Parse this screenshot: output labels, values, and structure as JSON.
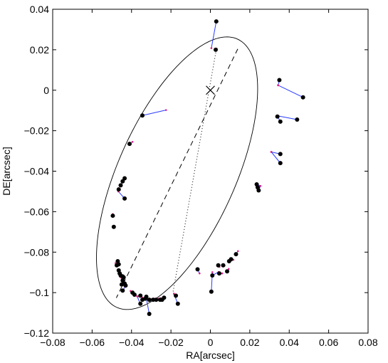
{
  "chart_data": {
    "type": "scatter",
    "title": "",
    "xlabel": "RA[arcsec]",
    "ylabel": "DE[arcsec]",
    "xlim": [
      -0.08,
      0.08
    ],
    "ylim": [
      -0.12,
      0.04
    ],
    "xticks": [
      -0.08,
      -0.06,
      -0.04,
      -0.02,
      0,
      0.02,
      0.04,
      0.06,
      0.08
    ],
    "xtick_labels": [
      "−0.08",
      "−0.06",
      "−0.04",
      "−0.02",
      "0",
      "0.02",
      "0.04",
      "0.06",
      "0.08"
    ],
    "yticks": [
      0.04,
      0.02,
      0,
      -0.02,
      -0.04,
      -0.06,
      -0.08,
      -0.1,
      -0.12
    ],
    "ytick_labels": [
      "0.04",
      "0.02",
      "0",
      "−0.02",
      "−0.04",
      "−0.06",
      "−0.08",
      "−0.1",
      "−0.12"
    ],
    "grid": false,
    "legend": "none",
    "orbit_ellipse": {
      "center": [
        -0.0169,
        -0.041
      ],
      "semi_major": 0.073,
      "semi_minor": 0.0296,
      "major_axis_angle_deg": 65
    },
    "focus_marker": [
      0,
      0
    ],
    "semi_major_axis_line": [
      [
        0.0139,
        0.0204
      ],
      [
        -0.0477,
        -0.1026
      ]
    ],
    "apsidal_line": [
      [
        0.0139,
        0.0204
      ],
      [
        -0.0477,
        -0.1026
      ]
    ],
    "line_of_nodes": [
      [
        0.003,
        0.02
      ],
      [
        -0.019,
        -0.1
      ]
    ],
    "observations": [
      {
        "obs": [
          0.003,
          0.034
        ],
        "fit": [
          0.0005,
          0.0208
        ]
      },
      {
        "obs": [
          0.0027,
          0.02
        ],
        "fit": [
          0.0032,
          0.0205
        ]
      },
      {
        "obs": [
          0.035,
          0.005
        ],
        "fit": [
          0.0344,
          0.0024
        ]
      },
      {
        "obs": [
          0.047,
          -0.0035
        ],
        "fit": [
          0.0343,
          0.0025
        ]
      },
      {
        "obs": [
          -0.0345,
          -0.0125
        ],
        "fit": [
          -0.0225,
          -0.0098
        ]
      },
      {
        "obs": [
          0.034,
          -0.013
        ],
        "fit": [
          0.0339,
          -0.0126
        ]
      },
      {
        "obs": [
          0.044,
          -0.0145
        ],
        "fit": [
          0.0339,
          -0.0126
        ]
      },
      {
        "obs": [
          0.0355,
          -0.0155
        ],
        "fit": [
          0.034,
          -0.0128
        ]
      },
      {
        "obs": [
          -0.041,
          -0.0265
        ],
        "fit": [
          -0.0395,
          -0.0255
        ]
      },
      {
        "obs": [
          0.0355,
          -0.0315
        ],
        "fit": [
          0.0309,
          -0.0305
        ]
      },
      {
        "obs": [
          0.0355,
          -0.036
        ],
        "fit": [
          0.0309,
          -0.0305
        ]
      },
      {
        "obs": [
          -0.0435,
          -0.0435
        ],
        "fit": [
          -0.0454,
          -0.0469
        ]
      },
      {
        "obs": [
          -0.0445,
          -0.045
        ],
        "fit": [
          -0.0454,
          -0.0469
        ]
      },
      {
        "obs": [
          -0.0455,
          -0.047
        ],
        "fit": [
          -0.0456,
          -0.0472
        ]
      },
      {
        "obs": [
          0.0235,
          -0.0465
        ],
        "fit": [
          0.0254,
          -0.0473
        ]
      },
      {
        "obs": [
          0.024,
          -0.048
        ],
        "fit": [
          0.0254,
          -0.0473
        ]
      },
      {
        "obs": [
          0.0245,
          -0.0495
        ],
        "fit": [
          0.0254,
          -0.0473
        ]
      },
      {
        "obs": [
          -0.0465,
          -0.049
        ],
        "fit": [
          -0.0466,
          -0.0484
        ]
      },
      {
        "obs": [
          -0.0435,
          -0.0535
        ],
        "fit": [
          -0.0467,
          -0.05
        ]
      },
      {
        "obs": [
          -0.0495,
          -0.062
        ],
        "fit": [
          -0.0495,
          -0.0612
        ]
      },
      {
        "obs": [
          -0.049,
          -0.0675
        ],
        "fit": [
          -0.0493,
          -0.0675
        ]
      },
      {
        "obs": [
          0.013,
          -0.081
        ],
        "fit": [
          0.014,
          -0.0795
        ]
      },
      {
        "obs": [
          0.0105,
          -0.0835
        ],
        "fit": [
          0.0117,
          -0.0838
        ]
      },
      {
        "obs": [
          0.0095,
          -0.0845
        ],
        "fit": [
          0.0105,
          -0.0838
        ]
      },
      {
        "obs": [
          -0.047,
          -0.0845
        ],
        "fit": [
          -0.0481,
          -0.0854
        ]
      },
      {
        "obs": [
          -0.0465,
          -0.086
        ],
        "fit": [
          -0.0478,
          -0.0862
        ]
      },
      {
        "obs": [
          -0.0475,
          -0.0865
        ],
        "fit": [
          -0.0478,
          -0.0862
        ]
      },
      {
        "obs": [
          0.004,
          -0.0865
        ],
        "fit": [
          0.0046,
          -0.0873
        ]
      },
      {
        "obs": [
          0.0065,
          -0.0865
        ],
        "fit": [
          0.0072,
          -0.0866
        ]
      },
      {
        "obs": [
          0.0085,
          -0.0895
        ],
        "fit": [
          0.0093,
          -0.0883
        ]
      },
      {
        "obs": [
          -0.0465,
          -0.089
        ],
        "fit": [
          -0.0467,
          -0.0888
        ]
      },
      {
        "obs": [
          -0.046,
          -0.0905
        ],
        "fit": [
          -0.0465,
          -0.0899
        ]
      },
      {
        "obs": [
          -0.0455,
          -0.0915
        ],
        "fit": [
          -0.0461,
          -0.0909
        ]
      },
      {
        "obs": [
          -0.0445,
          -0.092
        ],
        "fit": [
          -0.0457,
          -0.0922
        ]
      },
      {
        "obs": [
          -0.044,
          -0.0925
        ],
        "fit": [
          -0.0451,
          -0.0928
        ]
      },
      {
        "obs": [
          -0.0445,
          -0.094
        ],
        "fit": [
          -0.0449,
          -0.0935
        ]
      },
      {
        "obs": [
          -0.0435,
          -0.0955
        ],
        "fit": [
          -0.0441,
          -0.0952
        ]
      },
      {
        "obs": [
          -0.043,
          -0.0965
        ],
        "fit": [
          -0.0436,
          -0.0962
        ]
      },
      {
        "obs": [
          -0.045,
          -0.096
        ],
        "fit": [
          -0.0446,
          -0.0945
        ]
      },
      {
        "obs": [
          -0.0445,
          -0.099
        ],
        "fit": [
          -0.0432,
          -0.0971
        ]
      },
      {
        "obs": [
          0.0045,
          -0.0905
        ],
        "fit": [
          0.006,
          -0.0905
        ]
      },
      {
        "obs": [
          0.001,
          -0.0915
        ],
        "fit": [
          0.0042,
          -0.0898
        ]
      },
      {
        "obs": [
          -0.0395,
          -0.1
        ],
        "fit": [
          -0.0405,
          -0.0992
        ]
      },
      {
        "obs": [
          -0.0385,
          -0.101
        ],
        "fit": [
          -0.0392,
          -0.1003
        ]
      },
      {
        "obs": [
          -0.0355,
          -0.1015
        ],
        "fit": [
          -0.0366,
          -0.1018
        ]
      },
      {
        "obs": [
          -0.0325,
          -0.102
        ],
        "fit": [
          -0.0331,
          -0.1024
        ]
      },
      {
        "obs": [
          -0.0345,
          -0.1035
        ],
        "fit": [
          -0.0344,
          -0.1025
        ]
      },
      {
        "obs": [
          -0.033,
          -0.103
        ],
        "fit": [
          -0.0332,
          -0.1028
        ]
      },
      {
        "obs": [
          -0.031,
          -0.1035
        ],
        "fit": [
          -0.0321,
          -0.103
        ]
      },
      {
        "obs": [
          -0.029,
          -0.1035
        ],
        "fit": [
          -0.0298,
          -0.1032
        ]
      },
      {
        "obs": [
          -0.0275,
          -0.1035
        ],
        "fit": [
          -0.0284,
          -0.103
        ]
      },
      {
        "obs": [
          -0.0255,
          -0.1035
        ],
        "fit": [
          -0.0263,
          -0.103
        ]
      },
      {
        "obs": [
          -0.0245,
          -0.1035
        ],
        "fit": [
          -0.0252,
          -0.1028
        ]
      },
      {
        "obs": [
          -0.0235,
          -0.1025
        ],
        "fit": [
          -0.0238,
          -0.1024
        ]
      },
      {
        "obs": [
          -0.0175,
          -0.1015
        ],
        "fit": [
          -0.0185,
          -0.1005
        ]
      },
      {
        "obs": [
          -0.0165,
          -0.1055
        ],
        "fit": [
          -0.0185,
          -0.1006
        ]
      },
      {
        "obs": [
          -0.0355,
          -0.1055
        ],
        "fit": [
          -0.0372,
          -0.1018
        ]
      },
      {
        "obs": [
          -0.031,
          -0.1105
        ],
        "fit": [
          -0.0325,
          -0.1028
        ]
      },
      {
        "obs": [
          0.0005,
          -0.0995
        ],
        "fit": [
          0.001,
          -0.0899
        ]
      },
      {
        "obs": [
          -0.0065,
          -0.0885
        ],
        "fit": [
          -0.0055,
          -0.0905
        ]
      }
    ]
  }
}
